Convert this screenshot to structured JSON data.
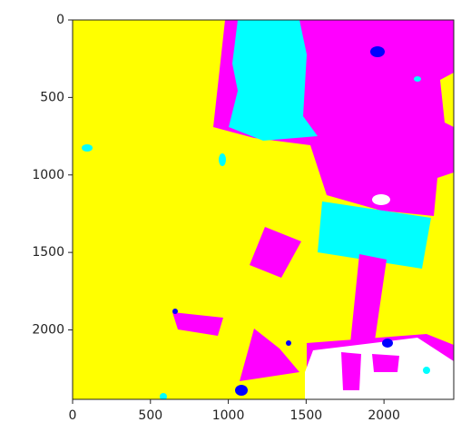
{
  "chart_data": {
    "type": "image",
    "xlim": [
      0,
      2448
    ],
    "ylim": [
      2448,
      0
    ],
    "xticks": [
      0,
      500,
      1000,
      1500,
      2000
    ],
    "yticks": [
      0,
      500,
      1000,
      1500,
      2000
    ]
  }
}
